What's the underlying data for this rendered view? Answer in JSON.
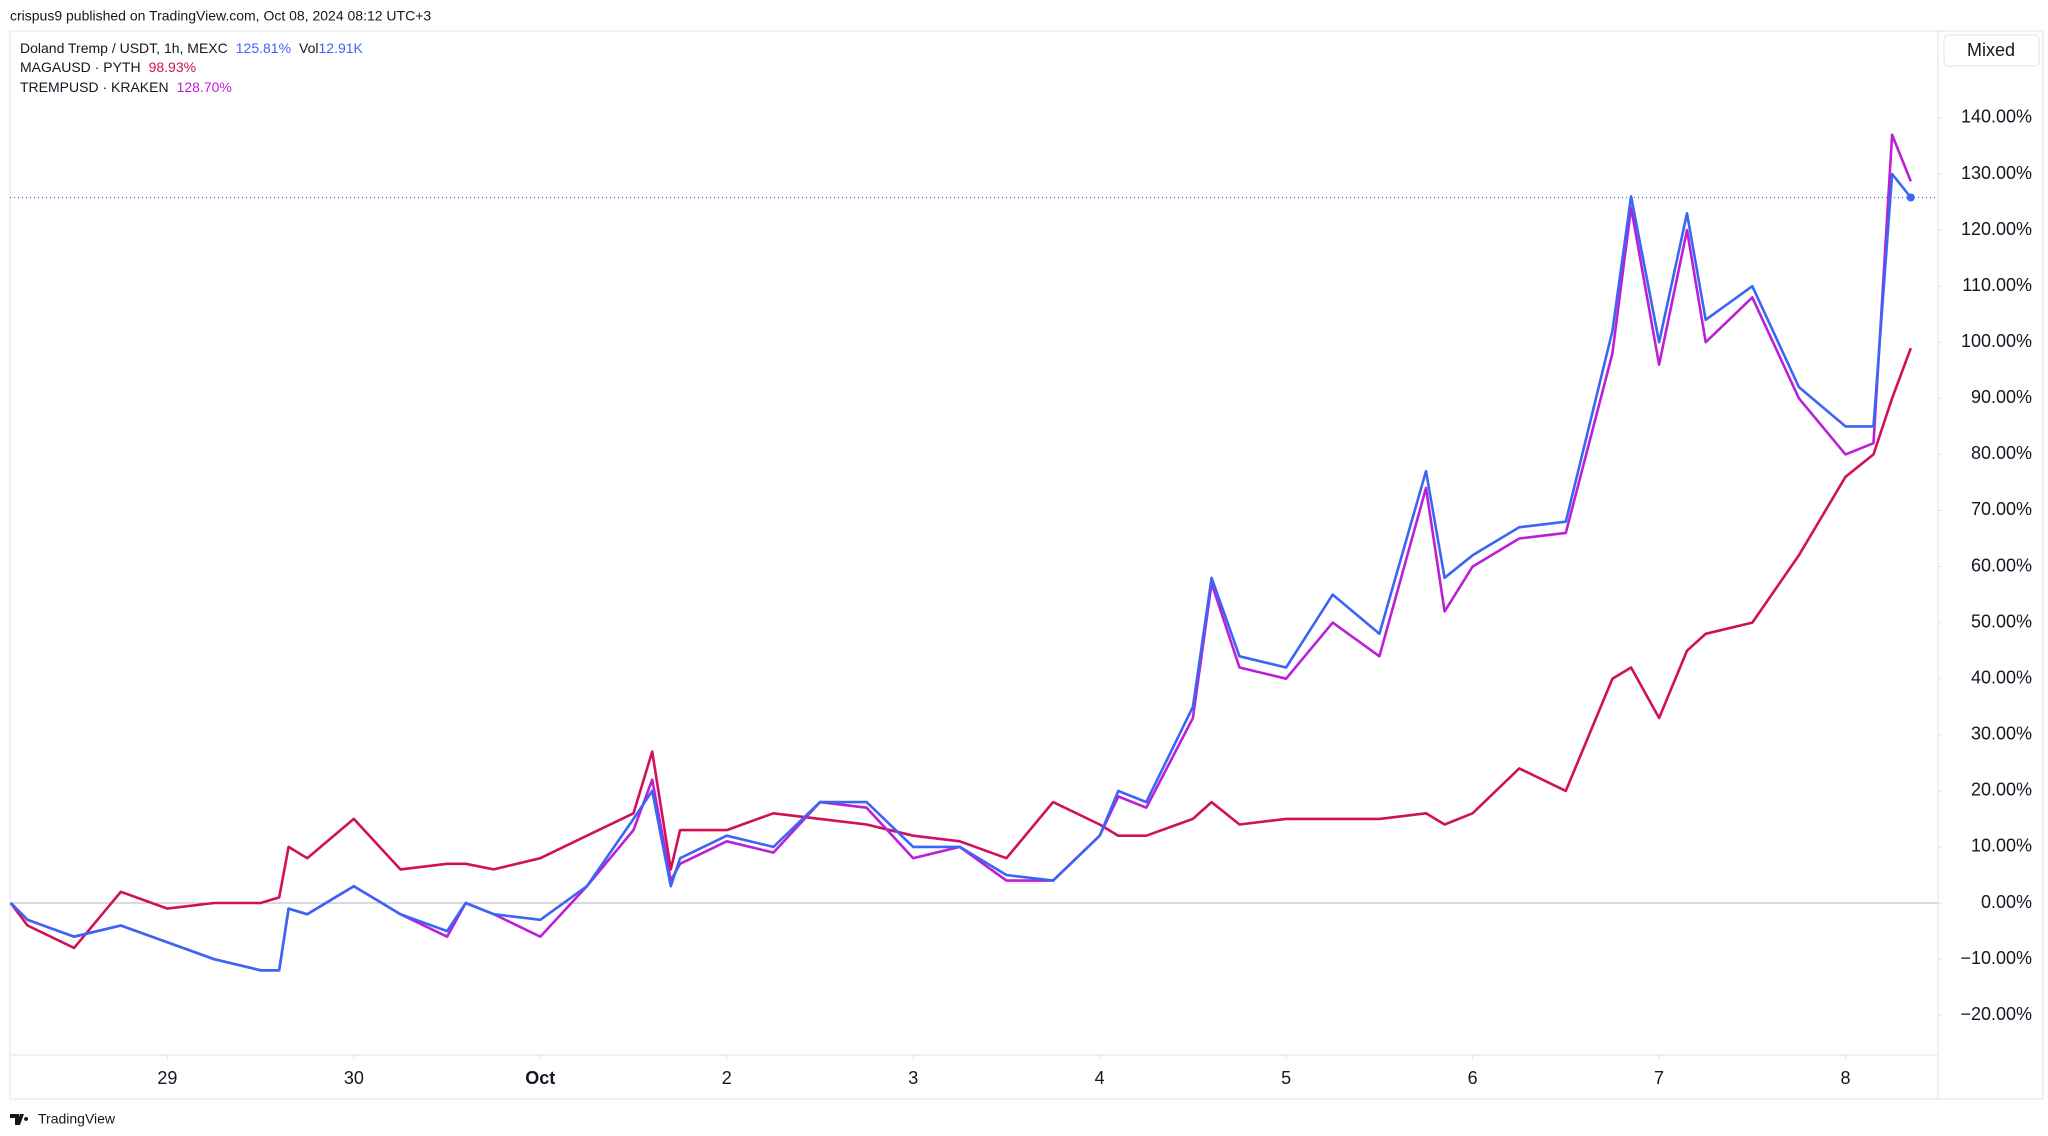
{
  "header": {
    "published": "crispus9 published on TradingView.com, Oct 08, 2024 08:12 UTC+3",
    "scale_mode": "Mixed"
  },
  "footer": {
    "brand": "TradingView"
  },
  "chart_data": {
    "type": "line",
    "x": [
      28.16,
      28.25,
      28.5,
      28.75,
      29.0,
      29.25,
      29.5,
      29.6,
      29.65,
      29.75,
      30.0,
      30.25,
      30.5,
      30.6,
      30.75,
      31.0,
      31.25,
      31.5,
      31.6,
      31.7,
      31.75,
      32.0,
      32.25,
      32.5,
      32.75,
      33.0,
      33.25,
      33.5,
      33.75,
      34.0,
      34.1,
      34.25,
      34.5,
      34.6,
      34.75,
      35.0,
      35.25,
      35.5,
      35.75,
      35.85,
      36.0,
      36.25,
      36.5,
      36.75,
      36.85,
      37.0,
      37.15,
      37.25,
      37.5,
      37.75,
      38.0,
      38.15,
      38.25,
      38.35
    ],
    "xlim": [
      28.156,
      38.496
    ],
    "xticks": [
      {
        "value": 29,
        "label": "29"
      },
      {
        "value": 30,
        "label": "30"
      },
      {
        "value": 31,
        "label": "Oct"
      },
      {
        "value": 32,
        "label": "2"
      },
      {
        "value": 33,
        "label": "3"
      },
      {
        "value": 34,
        "label": "4"
      },
      {
        "value": 35,
        "label": "5"
      },
      {
        "value": 36,
        "label": "6"
      },
      {
        "value": 37,
        "label": "7"
      },
      {
        "value": 38,
        "label": "8"
      }
    ],
    "ylim": [
      -27.1,
      155.5
    ],
    "yticks": [
      {
        "value": -20,
        "label": "−20.00%"
      },
      {
        "value": -10,
        "label": "−10.00%"
      },
      {
        "value": 0,
        "label": "0.00%"
      },
      {
        "value": 10,
        "label": "10.00%"
      },
      {
        "value": 20,
        "label": "20.00%"
      },
      {
        "value": 30,
        "label": "30.00%"
      },
      {
        "value": 40,
        "label": "40.00%"
      },
      {
        "value": 50,
        "label": "50.00%"
      },
      {
        "value": 60,
        "label": "60.00%"
      },
      {
        "value": 70,
        "label": "70.00%"
      },
      {
        "value": 80,
        "label": "80.00%"
      },
      {
        "value": 90,
        "label": "90.00%"
      },
      {
        "value": 100,
        "label": "100.00%"
      },
      {
        "value": 110,
        "label": "110.00%"
      },
      {
        "value": 120,
        "label": "120.00%"
      },
      {
        "value": 130,
        "label": "130.00%"
      },
      {
        "value": 140,
        "label": "140.00%"
      }
    ],
    "series": [
      {
        "name": "Doland Tremp / USDT, 1h, MEXC",
        "legend_value": "125.81%",
        "volume_prefix": "Vol",
        "volume": "12.91K",
        "color": "#3a66f5",
        "values": [
          0,
          -3,
          -6,
          -4,
          -7,
          -10,
          -12,
          -12,
          -1,
          -2,
          3,
          -2,
          -5,
          0,
          -2,
          -3,
          3,
          15,
          20,
          3,
          8,
          12,
          10,
          18,
          18,
          10,
          10,
          5,
          4,
          12,
          20,
          18,
          35,
          58,
          44,
          42,
          55,
          48,
          77,
          58,
          62,
          67,
          68,
          102,
          126,
          100,
          123,
          104,
          110,
          92,
          85,
          85,
          130,
          125.81
        ]
      },
      {
        "name": "MAGAUSD · PYTH",
        "legend_value": "98.93%",
        "color": "#d0105a",
        "values": [
          0,
          -4,
          -8,
          2,
          -1,
          0,
          0,
          1,
          10,
          8,
          15,
          6,
          7,
          7,
          6,
          8,
          12,
          16,
          27,
          6,
          13,
          13,
          16,
          15,
          14,
          12,
          11,
          8,
          18,
          14,
          12,
          12,
          15,
          18,
          14,
          15,
          15,
          15,
          16,
          14,
          16,
          24,
          20,
          40,
          42,
          33,
          45,
          48,
          50,
          62,
          76,
          80,
          90,
          98.93
        ]
      },
      {
        "name": "TREMPUSD · KRAKEN",
        "legend_value": "128.70%",
        "color": "#bd1fd6",
        "values": [
          0,
          -3,
          -6,
          -4,
          -7,
          -10,
          -12,
          -12,
          -1,
          -2,
          3,
          -2,
          -6,
          0,
          -2,
          -6,
          3,
          13,
          22,
          4,
          7,
          11,
          9,
          18,
          17,
          8,
          10,
          4,
          4,
          12,
          19,
          17,
          33,
          57,
          42,
          40,
          50,
          44,
          74,
          52,
          60,
          65,
          66,
          98,
          124,
          96,
          120,
          100,
          108,
          90,
          80,
          82,
          137,
          128.7
        ]
      }
    ]
  }
}
